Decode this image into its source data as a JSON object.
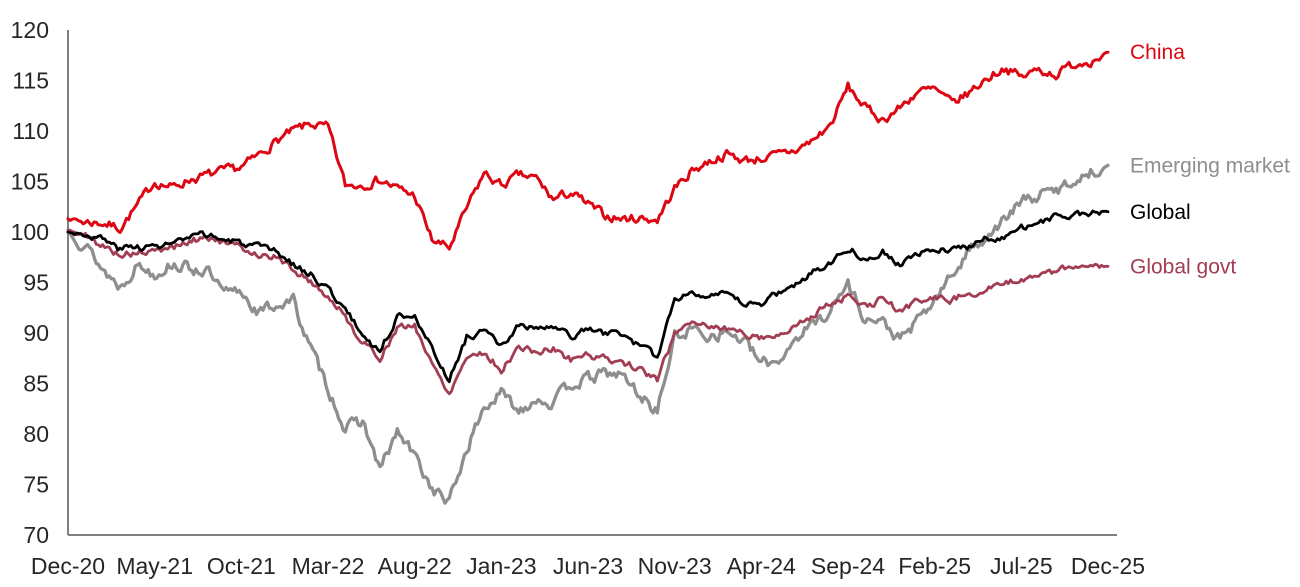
{
  "chart_data": {
    "type": "line",
    "title": "",
    "subtitle": "",
    "x_axis": {
      "label": "",
      "unit": "month",
      "start": "Dec-20",
      "end": "Dec-25",
      "months_total": 60,
      "tick_labels": [
        "Dec-20",
        "May-21",
        "Oct-21",
        "Mar-22",
        "Aug-22",
        "Jan-23",
        "Jun-23",
        "Nov-23",
        "Apr-24",
        "Sep-24",
        "Feb-25",
        "Jul-25",
        "Dec-25"
      ],
      "tick_month_offsets": [
        0,
        5,
        10,
        15,
        20,
        25,
        30,
        35,
        40,
        45,
        50,
        55,
        60
      ]
    },
    "y_axis": {
      "label": "",
      "min": 70,
      "max": 120,
      "tick_step": 5,
      "tick_labels": [
        "70",
        "75",
        "80",
        "85",
        "90",
        "95",
        "100",
        "105",
        "110",
        "115",
        "120"
      ]
    },
    "grid": "off",
    "legend_position": "right-of-line-ends",
    "sampling": "monthly, values read from chart (index level)",
    "series": [
      {
        "name": "China",
        "color": "#dd0714",
        "values": [
          101.3,
          101.0,
          100.9,
          100.4,
          102.6,
          105.0,
          104.4,
          105.2,
          105.6,
          106.0,
          106.4,
          107.6,
          109.0,
          110.0,
          110.7,
          110.3,
          104.6,
          104.7,
          105.2,
          104.3,
          103.6,
          99.2,
          98.4,
          102.3,
          105.8,
          104.6,
          105.6,
          105.3,
          103.2,
          103.9,
          102.7,
          101.6,
          101.3,
          101.4,
          101.2,
          104.3,
          106.1,
          107.0,
          107.7,
          107.1,
          107.3,
          107.6,
          108.1,
          109.1,
          110.6,
          114.4,
          112.3,
          111.1,
          112.3,
          113.9,
          114.1,
          112.7,
          113.8,
          115.2,
          116.3,
          115.3,
          116.1,
          115.6,
          116.6,
          117.0,
          117.8
        ]
      },
      {
        "name": "Emerging market",
        "color": "#8e8e8e",
        "values": [
          100.0,
          98.8,
          96.3,
          94.6,
          96.8,
          95.9,
          96.9,
          96.4,
          96.2,
          93.8,
          94.1,
          92.0,
          92.8,
          93.2,
          88.4,
          84.6,
          80.5,
          81.3,
          76.4,
          80.2,
          77.8,
          74.6,
          73.2,
          78.5,
          82.6,
          84.0,
          82.3,
          83.6,
          83.0,
          85.0,
          85.4,
          86.0,
          85.8,
          83.8,
          82.3,
          89.6,
          90.4,
          89.8,
          90.1,
          89.2,
          86.9,
          87.3,
          89.6,
          90.9,
          92.3,
          94.9,
          91.4,
          91.0,
          89.3,
          91.1,
          93.2,
          95.7,
          98.2,
          99.7,
          101.1,
          103.0,
          103.6,
          104.1,
          105.1,
          105.9,
          106.6
        ]
      },
      {
        "name": "Global",
        "color": "#000000",
        "values": [
          100.0,
          99.8,
          99.3,
          98.3,
          98.6,
          98.5,
          98.9,
          99.3,
          99.8,
          99.2,
          98.9,
          98.4,
          98.0,
          96.8,
          95.8,
          94.4,
          92.3,
          89.8,
          88.2,
          91.6,
          92.0,
          88.3,
          85.4,
          89.6,
          90.2,
          88.6,
          90.8,
          90.3,
          90.6,
          89.6,
          90.4,
          89.9,
          90.0,
          88.6,
          87.6,
          93.4,
          94.1,
          93.8,
          93.7,
          92.8,
          93.0,
          94.0,
          94.8,
          96.1,
          97.1,
          98.5,
          97.3,
          98.2,
          96.7,
          97.8,
          98.1,
          98.4,
          98.6,
          99.3,
          99.6,
          100.4,
          100.9,
          101.5,
          101.7,
          101.9,
          102.0
        ]
      },
      {
        "name": "Global govt",
        "color": "#a23e53",
        "values": [
          100.2,
          99.6,
          98.6,
          97.8,
          97.9,
          98.0,
          98.5,
          99.0,
          99.6,
          98.9,
          98.4,
          97.8,
          97.5,
          96.3,
          95.1,
          93.6,
          91.6,
          89.0,
          87.6,
          90.4,
          90.8,
          86.9,
          84.1,
          87.7,
          88.1,
          86.3,
          88.6,
          88.1,
          88.4,
          87.4,
          87.9,
          87.4,
          87.2,
          86.3,
          85.4,
          89.9,
          91.3,
          90.7,
          90.4,
          90.0,
          89.6,
          89.8,
          90.6,
          91.9,
          92.9,
          93.6,
          92.5,
          93.4,
          92.1,
          93.2,
          93.5,
          93.3,
          94.0,
          94.3,
          94.7,
          95.4,
          95.7,
          96.2,
          96.4,
          96.7,
          96.6
        ]
      }
    ]
  },
  "colors": {
    "background": "#ffffff",
    "axis_line": "#7f7f7f",
    "tick_text": "#262626"
  }
}
